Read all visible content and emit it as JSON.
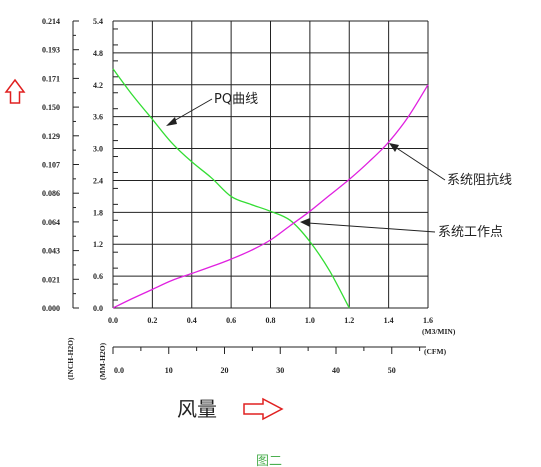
{
  "chart_data": {
    "type": "line",
    "x_axis": {
      "unit": "(M3/MIN)",
      "range": [
        0,
        1.6
      ],
      "ticks": [
        "0.0",
        "0.2",
        "0.4",
        "0.6",
        "0.8",
        "1.0",
        "1.2",
        "1.4",
        "1.6"
      ]
    },
    "x_axis_secondary": {
      "unit": "(CFM)",
      "range": [
        0,
        56.5
      ],
      "ticks": [
        "0.0",
        "10",
        "20",
        "30",
        "40",
        "50"
      ]
    },
    "y_axis_inner": {
      "unit": "(MM-H2O)",
      "range": [
        0,
        5.4
      ],
      "ticks": [
        "0.0",
        "0.6",
        "1.2",
        "1.8",
        "2.4",
        "3.0",
        "3.6",
        "4.2",
        "4.8",
        "5.4"
      ]
    },
    "y_axis_outer": {
      "unit": "(INCH-H2O)",
      "range": [
        0,
        0.214
      ],
      "ticks": [
        "0.000",
        "0.021",
        "0.043",
        "0.064",
        "0.086",
        "0.107",
        "0.129",
        "0.150",
        "0.171",
        "0.193",
        "0.214"
      ]
    },
    "series": [
      {
        "name": "PQ曲线",
        "color": "#33dd33",
        "x": [
          0.0,
          0.1,
          0.2,
          0.3,
          0.4,
          0.5,
          0.6,
          0.7,
          0.8,
          0.9,
          1.0,
          1.1,
          1.2
        ],
        "y": [
          4.5,
          4.0,
          3.55,
          3.1,
          2.75,
          2.45,
          2.1,
          1.95,
          1.82,
          1.65,
          1.25,
          0.7,
          0.0
        ]
      },
      {
        "name": "系统阻抗线",
        "color": "#e020e0",
        "x": [
          0.0,
          0.1,
          0.2,
          0.3,
          0.4,
          0.5,
          0.6,
          0.7,
          0.8,
          0.9,
          1.0,
          1.1,
          1.2,
          1.3,
          1.4,
          1.5,
          1.6
        ],
        "y": [
          0.0,
          0.18,
          0.35,
          0.52,
          0.65,
          0.78,
          0.92,
          1.08,
          1.28,
          1.55,
          1.82,
          2.12,
          2.42,
          2.75,
          3.12,
          3.6,
          4.2
        ]
      }
    ],
    "annotations": {
      "pq_curve": "PQ曲线",
      "system_line": "系统阻抗线",
      "operating_point": "系统工作点"
    },
    "grid": true
  },
  "labels": {
    "airflow": "风量",
    "caption": "图二"
  },
  "colors": {
    "grid": "#222222",
    "arrow": "#e02020",
    "caption": "#4caf50"
  }
}
